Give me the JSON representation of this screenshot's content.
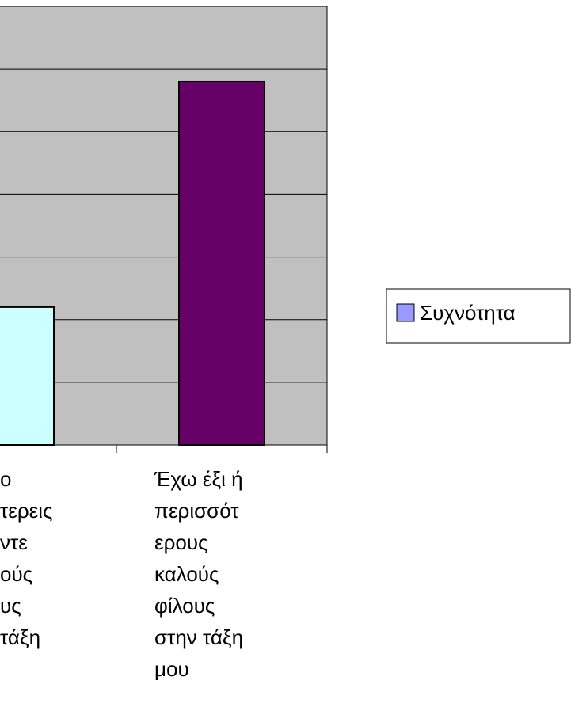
{
  "chart_data": {
    "type": "bar",
    "categories": [
      [
        "ο",
        "τερεις",
        "ντε",
        "ούς",
        "υς",
        "τάξη"
      ],
      [
        "Έχω έξι ή",
        "περισσότ",
        "ερους",
        "καλούς",
        "φίλους",
        "στην τάξη",
        "μου"
      ]
    ],
    "series": [
      {
        "name": "Συχνότητα",
        "color": "#9999ff",
        "point_colors": [
          "#ccffff",
          "#660066"
        ],
        "values": [
          2.2,
          5.8
        ]
      }
    ],
    "ylim": [
      0,
      7
    ],
    "yticks": [
      0,
      1,
      2,
      3,
      4,
      5,
      6,
      7
    ],
    "grid": true,
    "legend": "right"
  }
}
